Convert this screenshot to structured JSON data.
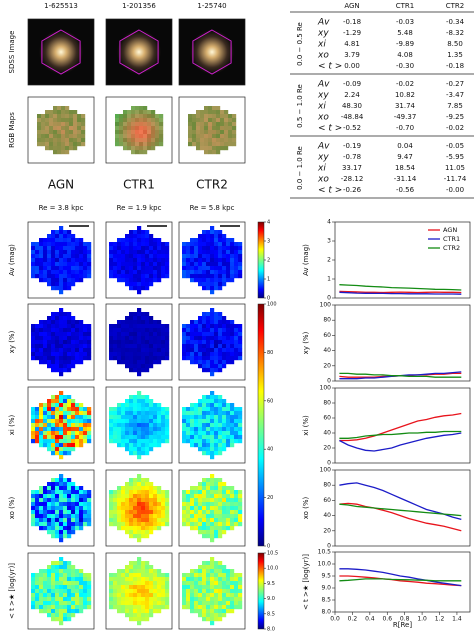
{
  "columns": [
    "1-625513",
    "1-201356",
    "1-25740"
  ],
  "image_rows": [
    "SDSS Image",
    "RGB Maps"
  ],
  "groups": [
    {
      "name": "AGN",
      "color": "#e8141c"
    },
    {
      "name": "CTR1",
      "color": "#1c1cc8"
    },
    {
      "name": "CTR2",
      "color": "#148c14"
    }
  ],
  "re_labels": [
    "Re = 3.8 kpc",
    "Re = 1.9 kpc",
    "Re = 5.8 kpc"
  ],
  "map_rows": [
    "Av (mag)",
    "xy (%)",
    "xi (%)",
    "xo (%)",
    "< t >★ [log(yr)]"
  ],
  "colorbars": [
    {
      "lim": [
        0,
        4
      ],
      "ticks": [
        0,
        1,
        2,
        3,
        4
      ]
    },
    {
      "lim": [
        0,
        100
      ],
      "ticks": [
        0,
        20,
        40,
        60,
        80,
        100
      ]
    },
    {
      "lim": [
        8,
        10.5
      ],
      "ticks": [
        {
          "value": 8,
          "label": "8.0"
        },
        8.5,
        {
          "value": 9,
          "label": "9.0"
        },
        9.5,
        {
          "value": 10,
          "label": "10.0"
        },
        10.5
      ]
    }
  ],
  "table": {
    "header": [
      "AGN",
      "CTR1",
      "CTR2"
    ],
    "sections": [
      {
        "label": "0.0 − 0.5 Re",
        "rows": [
          [
            "Av",
            "-0.18",
            "-0.03",
            "-0.34"
          ],
          [
            "xy",
            "-1.29",
            "5.48",
            "-8.32"
          ],
          [
            "xi",
            "4.81",
            "-9.89",
            "8.50"
          ],
          [
            "xo",
            "3.79",
            "4.08",
            "1.35"
          ],
          [
            "< t >",
            "0.00",
            "-0.30",
            "-0.18"
          ]
        ]
      },
      {
        "label": "0.5 − 1.0 Re",
        "rows": [
          [
            "Av",
            "-0.09",
            "-0.02",
            "-0.27"
          ],
          [
            "xy",
            "2.24",
            "10.82",
            "-3.47"
          ],
          [
            "xi",
            "48.30",
            "31.74",
            "7.85"
          ],
          [
            "xo",
            "-48.84",
            "-49.37",
            "-9.25"
          ],
          [
            "< t >",
            "-0.52",
            "-0.70",
            "-0.02"
          ]
        ]
      },
      {
        "label": "0.0 − 1.0 Re",
        "rows": [
          [
            "Av",
            "-0.19",
            "0.04",
            "-0.05"
          ],
          [
            "xy",
            "-0.78",
            "9.47",
            "-5.95"
          ],
          [
            "xi",
            "33.17",
            "18.54",
            "11.05"
          ],
          [
            "xo",
            "-28.12",
            "-31.14",
            "-11.74"
          ],
          [
            "< t >",
            "-0.26",
            "-0.56",
            "-0.00"
          ]
        ]
      }
    ]
  },
  "chart_data": [
    {
      "type": "line",
      "ylabel": "Av (mag)",
      "legend": "upper right",
      "xlim": [
        0,
        1.55
      ],
      "ylim": [
        0,
        4
      ],
      "yticks": [
        0,
        1,
        2,
        3,
        4
      ],
      "x": [
        0.05,
        0.15,
        0.25,
        0.35,
        0.45,
        0.55,
        0.65,
        0.75,
        0.85,
        0.95,
        1.05,
        1.15,
        1.25,
        1.35,
        1.45
      ],
      "series": [
        {
          "name": "AGN",
          "color": "#e8141c",
          "values": [
            0.35,
            0.33,
            0.32,
            0.3,
            0.3,
            0.29,
            0.3,
            0.31,
            0.3,
            0.29,
            0.3,
            0.31,
            0.3,
            0.3,
            0.29
          ]
        },
        {
          "name": "CTR1",
          "color": "#1c1cc8",
          "values": [
            0.3,
            0.28,
            0.26,
            0.25,
            0.24,
            0.24,
            0.23,
            0.23,
            0.22,
            0.22,
            0.22,
            0.21,
            0.21,
            0.21,
            0.2
          ]
        },
        {
          "name": "CTR2",
          "color": "#148c14",
          "values": [
            0.7,
            0.68,
            0.66,
            0.62,
            0.6,
            0.58,
            0.55,
            0.53,
            0.52,
            0.5,
            0.48,
            0.46,
            0.45,
            0.44,
            0.42
          ]
        }
      ]
    },
    {
      "type": "line",
      "ylabel": "xy (%)",
      "xlim": [
        0,
        1.55
      ],
      "ylim": [
        0,
        100
      ],
      "yticks": [
        0,
        20,
        40,
        60,
        80,
        100
      ],
      "x": [
        0.05,
        0.15,
        0.25,
        0.35,
        0.45,
        0.55,
        0.65,
        0.75,
        0.85,
        0.95,
        1.05,
        1.15,
        1.25,
        1.35,
        1.45
      ],
      "series": [
        {
          "color": "#e8141c",
          "values": [
            6,
            5,
            5,
            5,
            5,
            6,
            6,
            7,
            7,
            8,
            8,
            9,
            9,
            10,
            10
          ]
        },
        {
          "color": "#1c1cc8",
          "values": [
            3,
            3,
            3,
            4,
            4,
            5,
            6,
            7,
            8,
            8,
            9,
            10,
            10,
            11,
            12
          ]
        },
        {
          "color": "#148c14",
          "values": [
            10,
            10,
            9,
            9,
            8,
            8,
            7,
            7,
            6,
            6,
            6,
            5,
            5,
            5,
            5
          ]
        }
      ]
    },
    {
      "type": "line",
      "ylabel": "xi (%)",
      "xlim": [
        0,
        1.55
      ],
      "ylim": [
        0,
        100
      ],
      "yticks": [
        0,
        20,
        40,
        60,
        80,
        100
      ],
      "x": [
        0.05,
        0.15,
        0.25,
        0.35,
        0.45,
        0.55,
        0.65,
        0.75,
        0.85,
        0.95,
        1.05,
        1.15,
        1.25,
        1.35,
        1.45
      ],
      "series": [
        {
          "color": "#e8141c",
          "values": [
            30,
            30,
            31,
            33,
            36,
            40,
            44,
            48,
            52,
            56,
            58,
            61,
            63,
            64,
            66
          ]
        },
        {
          "color": "#1c1cc8",
          "values": [
            30,
            24,
            20,
            17,
            16,
            18,
            20,
            24,
            27,
            30,
            33,
            35,
            37,
            38,
            40
          ]
        },
        {
          "color": "#148c14",
          "values": [
            33,
            33,
            34,
            36,
            37,
            38,
            38,
            39,
            40,
            40,
            41,
            41,
            42,
            42,
            42
          ]
        }
      ]
    },
    {
      "type": "line",
      "ylabel": "xo (%)",
      "xlim": [
        0,
        1.55
      ],
      "ylim": [
        0,
        100
      ],
      "yticks": [
        0,
        20,
        40,
        60,
        80,
        100
      ],
      "x": [
        0.05,
        0.15,
        0.25,
        0.35,
        0.45,
        0.55,
        0.65,
        0.75,
        0.85,
        0.95,
        1.05,
        1.15,
        1.25,
        1.35,
        1.45
      ],
      "series": [
        {
          "color": "#e8141c",
          "values": [
            55,
            56,
            55,
            52,
            50,
            47,
            44,
            40,
            36,
            33,
            30,
            28,
            26,
            23,
            20
          ]
        },
        {
          "color": "#1c1cc8",
          "values": [
            80,
            82,
            83,
            80,
            77,
            73,
            68,
            63,
            58,
            53,
            48,
            45,
            42,
            38,
            35
          ]
        },
        {
          "color": "#148c14",
          "values": [
            55,
            54,
            52,
            51,
            50,
            49,
            48,
            47,
            46,
            45,
            44,
            43,
            42,
            41,
            40
          ]
        }
      ]
    },
    {
      "type": "line",
      "ylabel": "< t >★ [log(yr)]",
      "xlabel": "R[Re]",
      "xlim": [
        0,
        1.55
      ],
      "ylim": [
        8,
        10.5
      ],
      "yticks": [
        {
          "value": 8,
          "label": "8.0"
        },
        8.5,
        {
          "value": 9,
          "label": "9.0"
        },
        9.5,
        {
          "value": 10,
          "label": "10.0"
        },
        10.5
      ],
      "xticks": [
        {
          "value": 0,
          "label": "0.0"
        },
        0.2,
        0.4,
        0.6,
        0.8,
        {
          "value": 1,
          "label": "1.0"
        },
        1.2,
        1.4
      ],
      "x": [
        0.05,
        0.15,
        0.25,
        0.35,
        0.45,
        0.55,
        0.65,
        0.75,
        0.85,
        0.95,
        1.05,
        1.15,
        1.25,
        1.35,
        1.45
      ],
      "series": [
        {
          "color": "#e8141c",
          "values": [
            9.5,
            9.5,
            9.48,
            9.45,
            9.42,
            9.38,
            9.35,
            9.3,
            9.27,
            9.24,
            9.2,
            9.18,
            9.15,
            9.12,
            9.1
          ]
        },
        {
          "color": "#1c1cc8",
          "values": [
            9.8,
            9.8,
            9.78,
            9.75,
            9.7,
            9.65,
            9.58,
            9.5,
            9.45,
            9.38,
            9.32,
            9.25,
            9.2,
            9.15,
            9.1
          ]
        },
        {
          "color": "#148c14",
          "values": [
            9.3,
            9.32,
            9.35,
            9.38,
            9.38,
            9.38,
            9.36,
            9.35,
            9.34,
            9.33,
            9.32,
            9.3,
            9.3,
            9.3,
            9.3
          ]
        }
      ]
    }
  ]
}
